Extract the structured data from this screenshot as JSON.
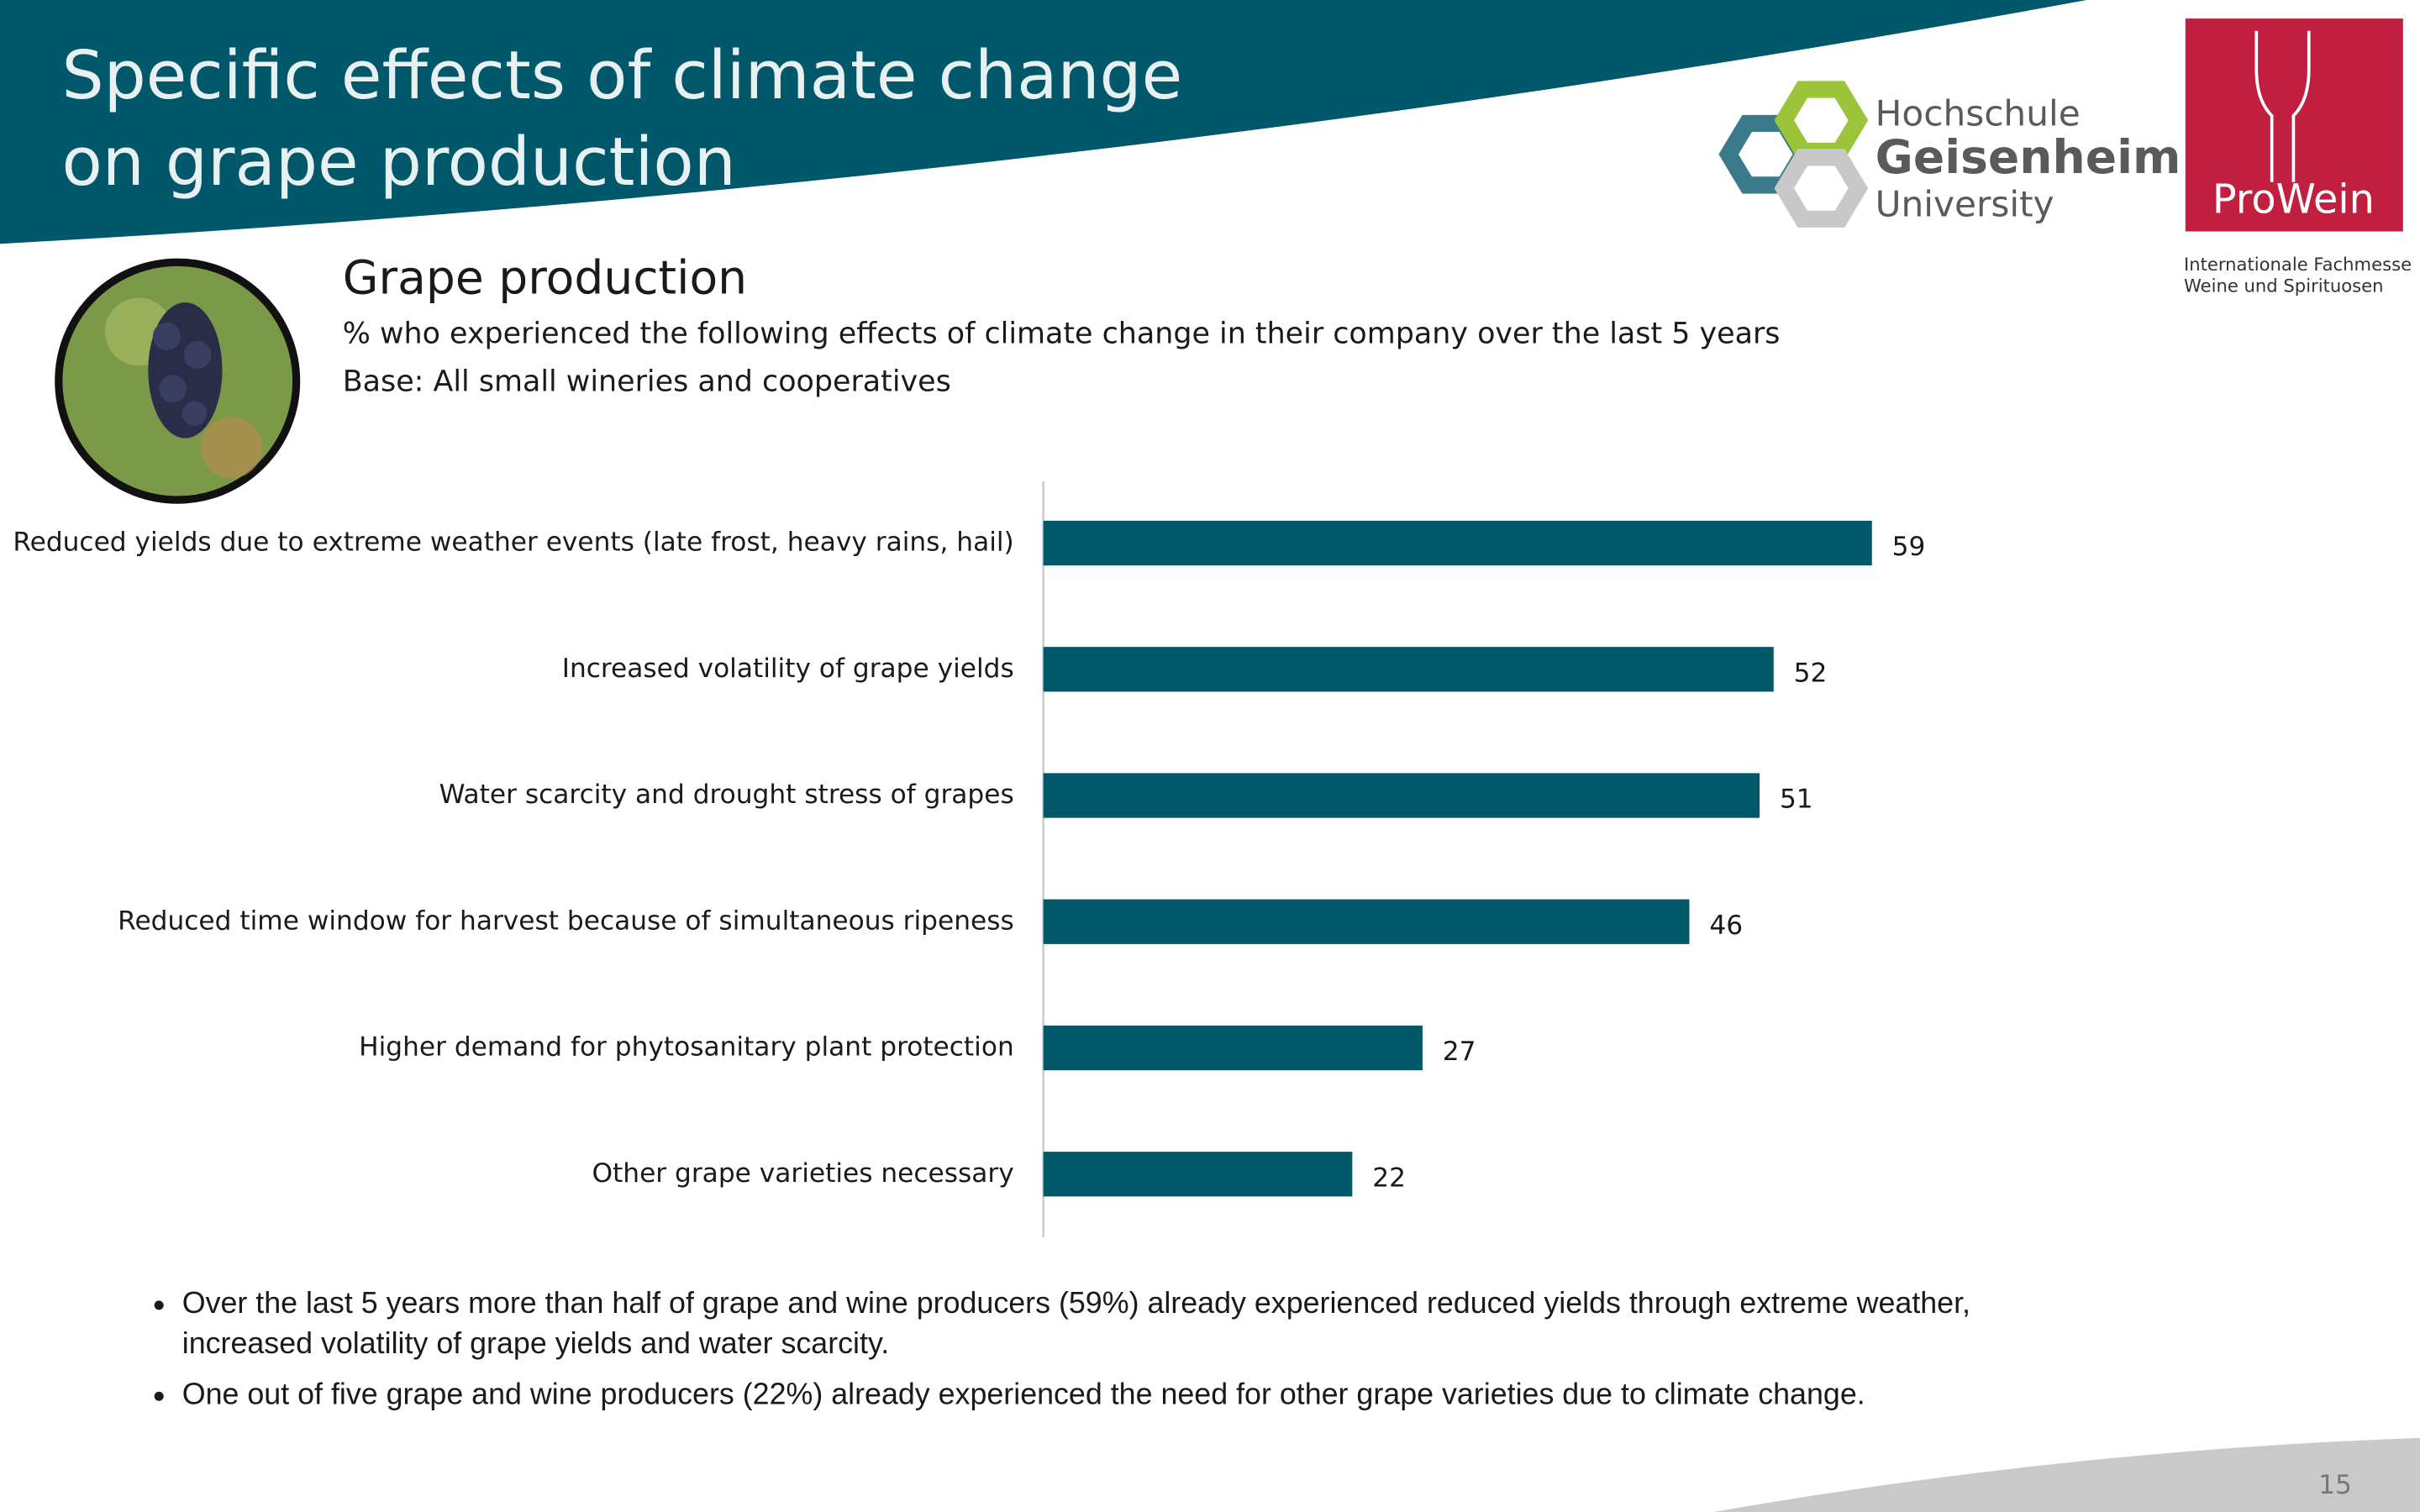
{
  "slide": {
    "title_lines": [
      "Specific effects of climate change",
      "on grape production"
    ],
    "logo_university": [
      "Hochschule",
      "Geisenheim",
      "University"
    ],
    "logo_fair": "ProWein",
    "logo_fair_tagline": [
      "Internationale Fachmesse",
      "Weine und Spirituosen"
    ],
    "bullets": [
      "Over the last 5 years more than half of grape and wine producers (59%) already experienced reduced yields through extreme weather, increased volatility of grape yields and water scarcity.",
      "One out of five grape and wine producers (22%) already experienced the need for other grape varieties due to climate change."
    ],
    "page_number": "15"
  },
  "chart_data": {
    "type": "hbar",
    "title": "Grape production",
    "subtitle": "% who experienced the following effects of climate change in their company over the last 5 years",
    "base": "Base: All small wineries and cooperatives",
    "categories": [
      "Reduced yields due to extreme weather events (late frost, heavy rains, hail)",
      "Increased volatility of grape yields",
      "Water scarcity and drought stress of grapes",
      "Reduced time window for harvest because of simultaneous ripeness",
      "Higher demand for phytosanitary plant protection",
      "Other grape varieties necessary"
    ],
    "values": [
      59,
      52,
      51,
      46,
      27,
      22
    ],
    "color": "#00596a"
  }
}
